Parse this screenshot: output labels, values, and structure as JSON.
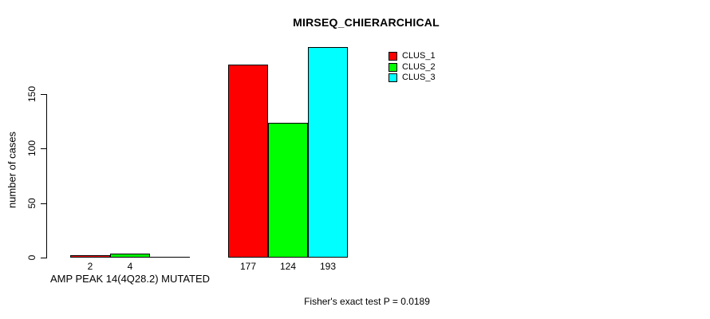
{
  "title": "MIRSEQ_CHIERARCHICAL",
  "footnote": "Fisher's exact test P = 0.0189",
  "y_axis": {
    "label": "number of cases",
    "ticks": [
      0,
      50,
      100,
      150
    ]
  },
  "x_axis": {
    "group_label": "AMP PEAK 14(4Q28.2) MUTATED"
  },
  "legend": {
    "items": [
      {
        "label": "CLUS_1",
        "color": "#ff0000"
      },
      {
        "label": "CLUS_2",
        "color": "#00ff00"
      },
      {
        "label": "CLUS_3",
        "color": "#00ffff"
      }
    ]
  },
  "chart_data": {
    "type": "bar",
    "title": "MIRSEQ_CHIERARCHICAL",
    "xlabel": "AMP PEAK 14(4Q28.2) MUTATED",
    "ylabel": "number of cases",
    "categories": [
      "AMP PEAK 14(4Q28.2) MUTATED",
      ""
    ],
    "series": [
      {
        "name": "CLUS_1",
        "color": "#ff0000",
        "values": [
          2,
          177
        ]
      },
      {
        "name": "CLUS_2",
        "color": "#00ff00",
        "values": [
          4,
          124
        ]
      },
      {
        "name": "CLUS_3",
        "color": "#00ffff",
        "values": [
          0,
          193
        ]
      }
    ],
    "bar_value_labels": [
      [
        "2",
        "4",
        ""
      ],
      [
        "177",
        "124",
        "193"
      ]
    ],
    "y_ticks": [
      0,
      50,
      100,
      150
    ],
    "ylim": [
      0,
      200
    ],
    "grid": false,
    "legend_position": "top-right",
    "annotation": "Fisher's exact test P = 0.0189"
  }
}
